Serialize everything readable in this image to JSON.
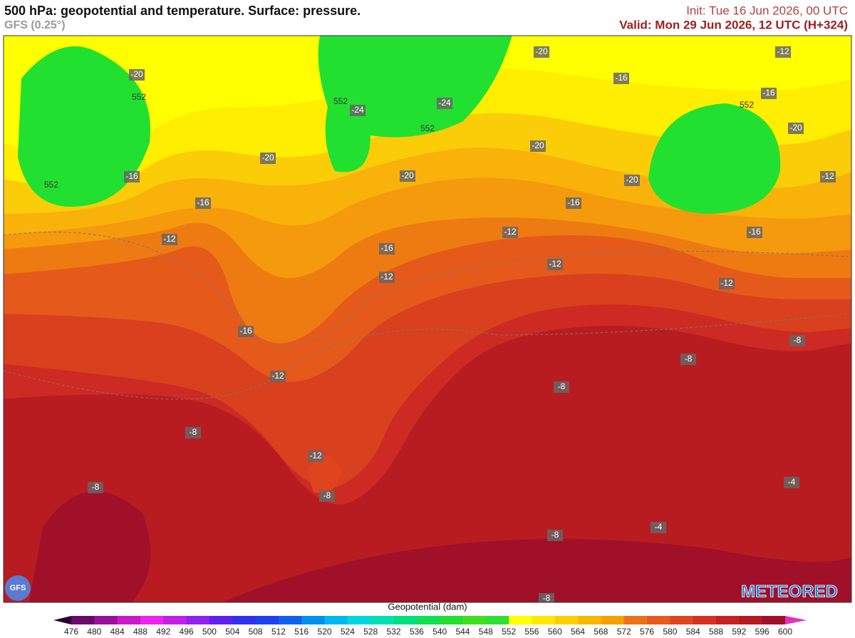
{
  "header": {
    "title": "500 hPa: geopotential and temperature. Surface: pressure.",
    "model": "GFS (0.25°)",
    "init": "Init: Tue 16 Jun 2026, 00 UTC",
    "valid": "Valid: Mon 29 Jun 2026, 12 UTC (H+324)"
  },
  "map": {
    "temperature_labels": [
      "-20",
      "-16",
      "-20",
      "-16",
      "-12",
      "-24",
      "-24",
      "-20",
      "-20",
      "-20",
      "-16",
      "-12",
      "-16",
      "-20",
      "-12",
      "-20",
      "-16",
      "-16",
      "-12",
      "-16",
      "-12",
      "-12",
      "-12",
      "-16",
      "-12",
      "-8",
      "-8",
      "-8",
      "-8",
      "-12",
      "-8",
      "-8",
      "-4",
      "-4",
      "-8",
      "-8"
    ],
    "contour_labels": [
      "552",
      "552",
      "552",
      "552",
      "552"
    ]
  },
  "logos": {
    "left": "GFS",
    "right": "METEORED"
  },
  "colorbar": {
    "title": "Geopotential (dam)",
    "ticks": [
      476,
      480,
      484,
      488,
      492,
      496,
      500,
      504,
      508,
      512,
      516,
      520,
      524,
      528,
      532,
      536,
      540,
      544,
      548,
      552,
      556,
      560,
      564,
      568,
      572,
      576,
      580,
      584,
      588,
      592,
      596,
      600
    ],
    "colors": [
      "#2a0030",
      "#6a0a6a",
      "#9a109a",
      "#c818c8",
      "#ee22ee",
      "#c020e8",
      "#9020ee",
      "#6020f0",
      "#3030f0",
      "#2040f0",
      "#1060f0",
      "#0090f0",
      "#00b8f0",
      "#00d8e0",
      "#00e0b0",
      "#00e080",
      "#10e050",
      "#20e030",
      "#40e020",
      "#30e030",
      "#ffff00",
      "#ffe800",
      "#fcd000",
      "#f8b800",
      "#f5a000",
      "#ec7018",
      "#e85a1c",
      "#e0441e",
      "#d83020",
      "#c82020",
      "#b81820",
      "#a01028",
      "#e030c0"
    ]
  }
}
